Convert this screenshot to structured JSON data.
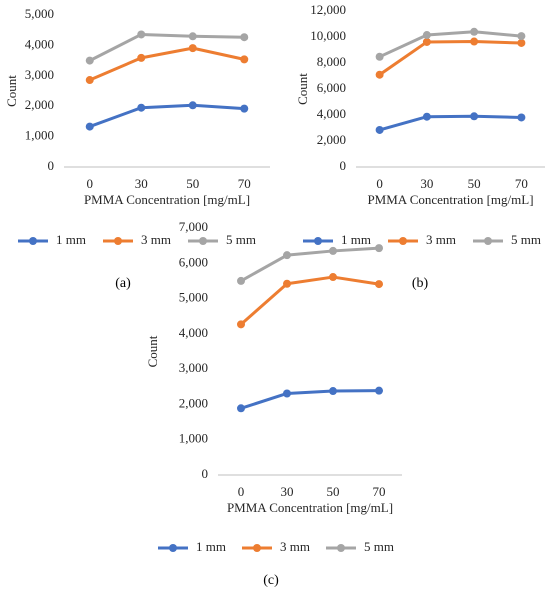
{
  "chart_data": [
    {
      "type": "line",
      "panel_label": "(a)",
      "categories": [
        "0",
        "30",
        "50",
        "70"
      ],
      "xlabel": "PMMA Concentration [mg/mL]",
      "ylabel": "Count",
      "ylim": [
        0,
        5000
      ],
      "yticks": [
        "0",
        "1,000",
        "2,000",
        "3,000",
        "4,000",
        "5,000"
      ],
      "grid": false,
      "legend": "bottom",
      "series": [
        {
          "name": "1 mm",
          "color": "#4472c4",
          "values": [
            1330,
            1950,
            2030,
            1920
          ]
        },
        {
          "name": "3 mm",
          "color": "#ed7d31",
          "values": [
            2860,
            3590,
            3910,
            3540
          ]
        },
        {
          "name": "5 mm",
          "color": "#a5a5a5",
          "values": [
            3500,
            4360,
            4300,
            4270
          ]
        }
      ]
    },
    {
      "type": "line",
      "panel_label": "(b)",
      "categories": [
        "0",
        "30",
        "50",
        "70"
      ],
      "xlabel": "PMMA Concentration [mg/mL]",
      "ylabel": "Count",
      "ylim": [
        0,
        12000
      ],
      "yticks": [
        "0",
        "2,000",
        "4,000",
        "6,000",
        "8,000",
        "10,000",
        "12,000"
      ],
      "grid": false,
      "legend": "bottom",
      "series": [
        {
          "name": "1 mm",
          "color": "#4472c4",
          "values": [
            2850,
            3870,
            3900,
            3810
          ]
        },
        {
          "name": "3 mm",
          "color": "#ed7d31",
          "values": [
            7100,
            9620,
            9650,
            9540
          ]
        },
        {
          "name": "5 mm",
          "color": "#a5a5a5",
          "values": [
            8480,
            10150,
            10400,
            10070
          ]
        }
      ]
    },
    {
      "type": "line",
      "panel_label": "(c)",
      "categories": [
        "0",
        "30",
        "50",
        "70"
      ],
      "xlabel": "PMMA Concentration [mg/mL]",
      "ylabel": "Count",
      "ylim": [
        0,
        7000
      ],
      "yticks": [
        "0",
        "1,000",
        "2,000",
        "3,000",
        "4,000",
        "5,000",
        "6,000",
        "7,000"
      ],
      "grid": false,
      "legend": "bottom",
      "series": [
        {
          "name": "1 mm",
          "color": "#4472c4",
          "values": [
            1890,
            2310,
            2380,
            2390
          ]
        },
        {
          "name": "3 mm",
          "color": "#ed7d31",
          "values": [
            4270,
            5420,
            5610,
            5410
          ]
        },
        {
          "name": "5 mm",
          "color": "#a5a5a5",
          "values": [
            5500,
            6230,
            6350,
            6430
          ]
        }
      ]
    }
  ]
}
